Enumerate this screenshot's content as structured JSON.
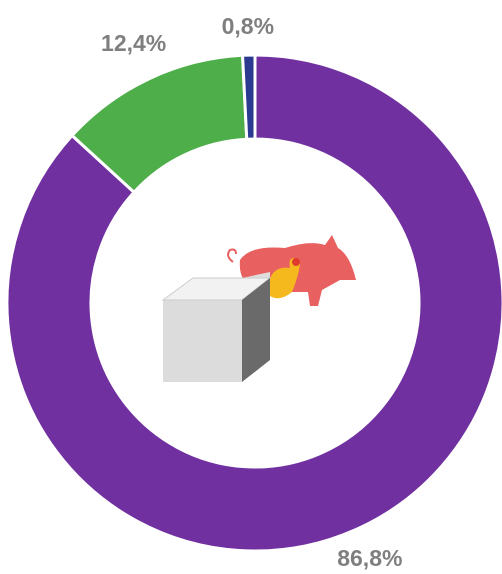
{
  "chart_data": {
    "type": "donut",
    "values": [
      86.8,
      12.4,
      0.8
    ],
    "value_labels": [
      "86,8%",
      "12,4%",
      "0,8%"
    ],
    "colors": [
      "#7030a0",
      "#4eae4a",
      "#2b3990"
    ]
  }
}
